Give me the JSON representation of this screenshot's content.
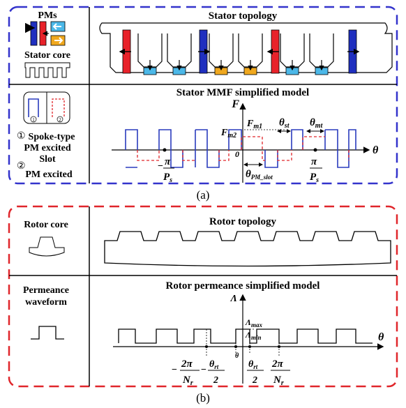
{
  "panel_a": {
    "legend": {
      "pms": "PMs",
      "stator_core": "Stator core",
      "spoke_type": "Spoke-type",
      "pm_excited_1": "PM excited",
      "slot": "Slot",
      "pm_excited_2": "PM excited",
      "marker_1": "①",
      "marker_2": "②",
      "inner_1": "1",
      "inner_2": "2"
    },
    "stator_topology_title": "Stator topology",
    "mmf_title": "Stator MMF simplified model",
    "mmf_axis": {
      "y": "F",
      "x": "θ",
      "origin": "0"
    },
    "mmf_labels": {
      "fm1": "F",
      "fm1_sub": "m1",
      "fm2": "F",
      "fm2_sub": "m2",
      "theta_st": "θ",
      "theta_st_sub": "st",
      "theta_mt": "θ",
      "theta_mt_sub": "mt",
      "theta_pm": "θ",
      "theta_pm_sub": "PM_slot",
      "neg_sign": "−",
      "pi": "π",
      "ps": "P",
      "ps_sub": "s"
    },
    "caption": "(a)",
    "colors": {
      "dash_border": "#3333cc",
      "magnet_red": "#e8222a",
      "magnet_blue": "#1f2fbf",
      "arrow_cyan": "#4cb8e8",
      "arrow_orange": "#f0a81e",
      "mmf_blue": "#2a3bbd",
      "mmf_red": "#e0262b"
    }
  },
  "panel_b": {
    "rotor_core": "Rotor core",
    "rotor_topology_title": "Rotor topology",
    "permeance_label_1": "Permeance",
    "permeance_label_2": "waveform",
    "permeance_title": "Rotor permeance simplified model",
    "axis": {
      "y": "Λ",
      "x": "θ"
    },
    "labels": {
      "lmax": "Λ",
      "lmax_sub": "max",
      "lmin": "Λ",
      "lmin_sub": "min",
      "two_pi": "2π",
      "nr": "N",
      "nr_sub": "r",
      "theta": "θ",
      "theta_sub": "rt",
      "two": "2",
      "neg": "−"
    },
    "caption": "(b)",
    "colors": {
      "dash_border": "#e0262b"
    }
  }
}
